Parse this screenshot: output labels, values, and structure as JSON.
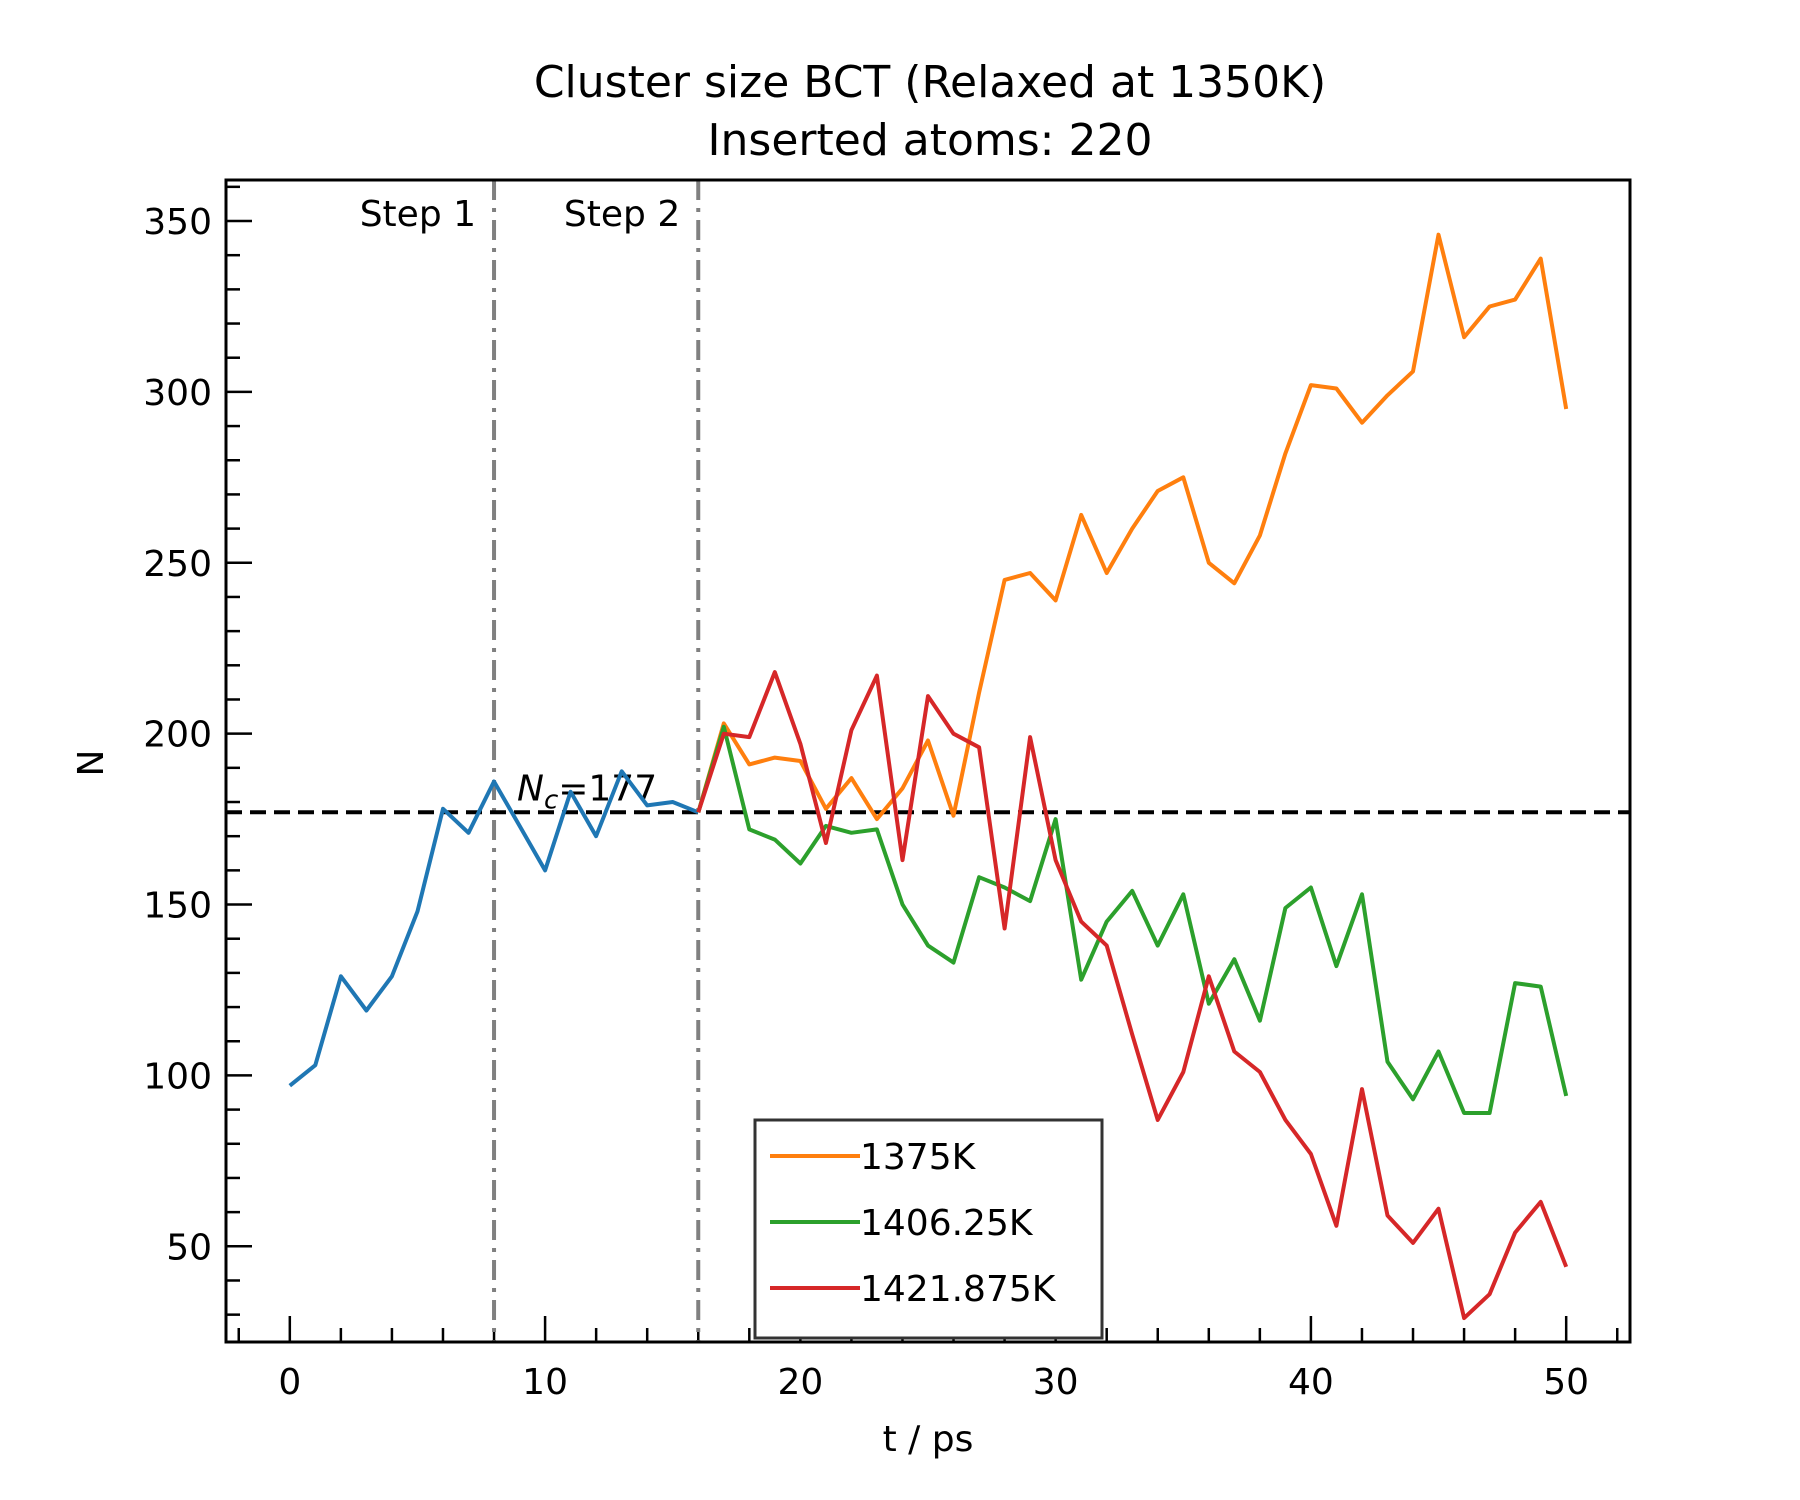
{
  "chart_data": {
    "type": "line",
    "title": [
      "Cluster size BCT (Relaxed at 1350K)",
      "Inserted atoms: 220"
    ],
    "xlabel": "t / ps",
    "ylabel": "N",
    "xlim": [
      -2.5,
      52.5
    ],
    "ylim": [
      22,
      362
    ],
    "xticks": [
      0,
      10,
      20,
      30,
      40,
      50
    ],
    "yticks": [
      50,
      100,
      150,
      200,
      250,
      300,
      350
    ],
    "xminor_step": 2,
    "yminor_step": 10,
    "legend_position": "lower-center",
    "series": [
      {
        "color": "#1f77b4",
        "x": [
          0,
          1,
          2,
          3,
          4,
          5,
          6,
          7,
          8,
          9,
          10,
          11,
          12,
          13,
          14,
          15,
          16
        ],
        "y": [
          97,
          103,
          129,
          119,
          129,
          148,
          178,
          171,
          186,
          173,
          160,
          183,
          170,
          189,
          179,
          180,
          177
        ]
      },
      {
        "name": "1375K",
        "color": "#ff7f0e",
        "x": [
          16,
          17,
          18,
          19,
          20,
          21,
          22,
          23,
          24,
          25,
          26,
          27,
          28,
          29,
          30,
          31,
          32,
          33,
          34,
          35,
          36,
          37,
          38,
          39,
          40,
          41,
          42,
          43,
          44,
          45,
          46,
          47,
          48,
          49,
          50
        ],
        "y": [
          177,
          203,
          191,
          193,
          192,
          178,
          187,
          175,
          184,
          198,
          176,
          212,
          245,
          247,
          239,
          264,
          247,
          260,
          271,
          275,
          250,
          244,
          258,
          282,
          302,
          301,
          291,
          299,
          306,
          346,
          316,
          325,
          327,
          339,
          295
        ]
      },
      {
        "name": "1406.25K",
        "color": "#2ca02c",
        "x": [
          16,
          17,
          18,
          19,
          20,
          21,
          22,
          23,
          24,
          25,
          26,
          27,
          28,
          29,
          30,
          31,
          32,
          33,
          34,
          35,
          36,
          37,
          38,
          39,
          40,
          41,
          42,
          43,
          44,
          45,
          46,
          47,
          48,
          49,
          50
        ],
        "y": [
          177,
          202,
          172,
          169,
          162,
          173,
          171,
          172,
          150,
          138,
          133,
          158,
          155,
          151,
          175,
          128,
          145,
          154,
          138,
          153,
          121,
          134,
          116,
          149,
          155,
          132,
          153,
          104,
          93,
          107,
          89,
          89,
          127,
          126,
          94
        ]
      },
      {
        "name": "1421.875K",
        "color": "#d62728",
        "x": [
          16,
          17,
          18,
          19,
          20,
          21,
          22,
          23,
          24,
          25,
          26,
          27,
          28,
          29,
          30,
          31,
          32,
          33,
          34,
          35,
          36,
          37,
          38,
          39,
          40,
          41,
          42,
          43,
          44,
          45,
          46,
          47,
          48,
          49,
          50
        ],
        "y": [
          177,
          200,
          199,
          218,
          197,
          168,
          201,
          217,
          163,
          211,
          200,
          196,
          143,
          199,
          163,
          145,
          138,
          112,
          87,
          101,
          129,
          107,
          101,
          87,
          77,
          56,
          96,
          59,
          51,
          61,
          29,
          36,
          54,
          63,
          44
        ]
      }
    ],
    "vlines": [
      {
        "x": 8,
        "label": "Step 1",
        "color": "#808080"
      },
      {
        "x": 16,
        "label": "Step 2",
        "color": "#808080"
      }
    ],
    "hline": {
      "y": 177,
      "color": "#000000",
      "label_main": "N",
      "label_sub": "c",
      "label_rest": "=177"
    }
  }
}
